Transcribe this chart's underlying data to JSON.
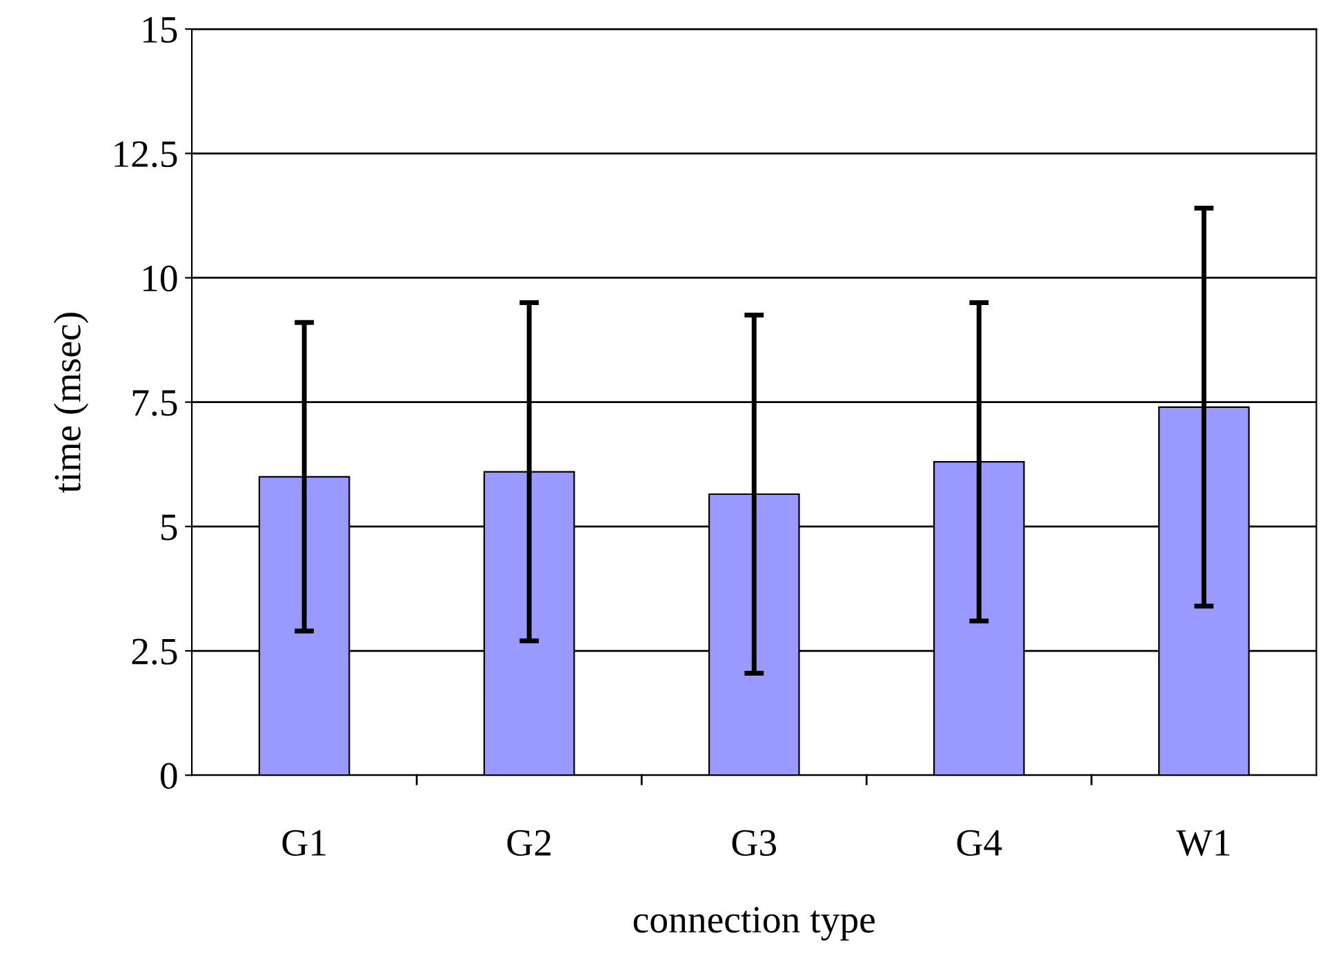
{
  "chart_data": {
    "type": "bar",
    "xlabel": "connection type",
    "ylabel": "time (msec)",
    "categories": [
      "G1",
      "G2",
      "G3",
      "G4",
      "W1"
    ],
    "values": [
      6.0,
      6.1,
      5.65,
      6.3,
      7.4
    ],
    "errors": [
      3.1,
      3.4,
      3.6,
      3.2,
      4.0
    ],
    "color": "#9999ff",
    "ylim": [
      0,
      15
    ],
    "yticks": [
      0,
      2.5,
      5,
      7.5,
      10,
      12.5,
      15
    ],
    "grid": "y"
  }
}
